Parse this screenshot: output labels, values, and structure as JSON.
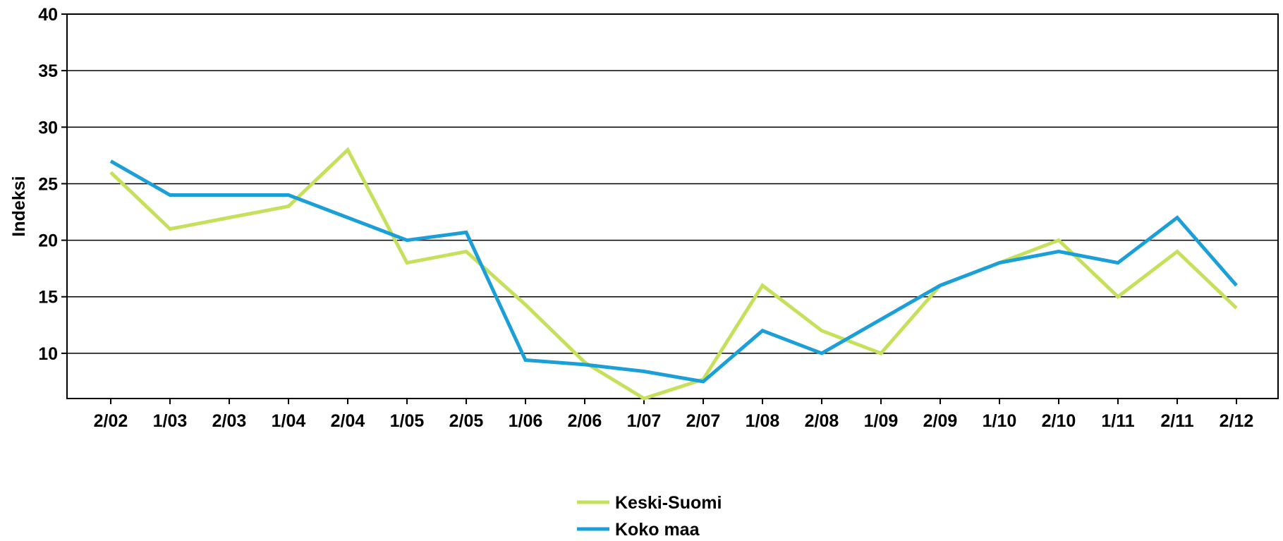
{
  "chart_data": {
    "type": "line",
    "title": "",
    "xlabel": "",
    "ylabel": "Indeksi",
    "categories": [
      "2/02",
      "1/03",
      "2/03",
      "1/04",
      "2/04",
      "1/05",
      "2/05",
      "1/06",
      "2/06",
      "1/07",
      "2/07",
      "1/08",
      "2/08",
      "1/09",
      "2/09",
      "1/10",
      "2/10",
      "1/11",
      "2/11",
      "2/12"
    ],
    "ylim": [
      6,
      40
    ],
    "yticks": [
      10,
      15,
      20,
      25,
      30,
      35,
      40
    ],
    "grid": "horizontal",
    "legend_position": "bottom-center",
    "series": [
      {
        "name": "Keski-Suomi",
        "color": "#c5e05a",
        "values": [
          26,
          21,
          22,
          23,
          28,
          18,
          19,
          14.3,
          9.2,
          6,
          7.7,
          16,
          12,
          10,
          16,
          18,
          20,
          15,
          19,
          14
        ]
      },
      {
        "name": "Koko maa",
        "color": "#1a9fd8",
        "values": [
          27,
          24,
          24,
          24,
          22,
          20,
          20.7,
          9.4,
          9,
          8.4,
          7.5,
          12,
          10,
          13,
          16,
          18,
          19,
          18,
          22,
          16
        ]
      }
    ]
  }
}
